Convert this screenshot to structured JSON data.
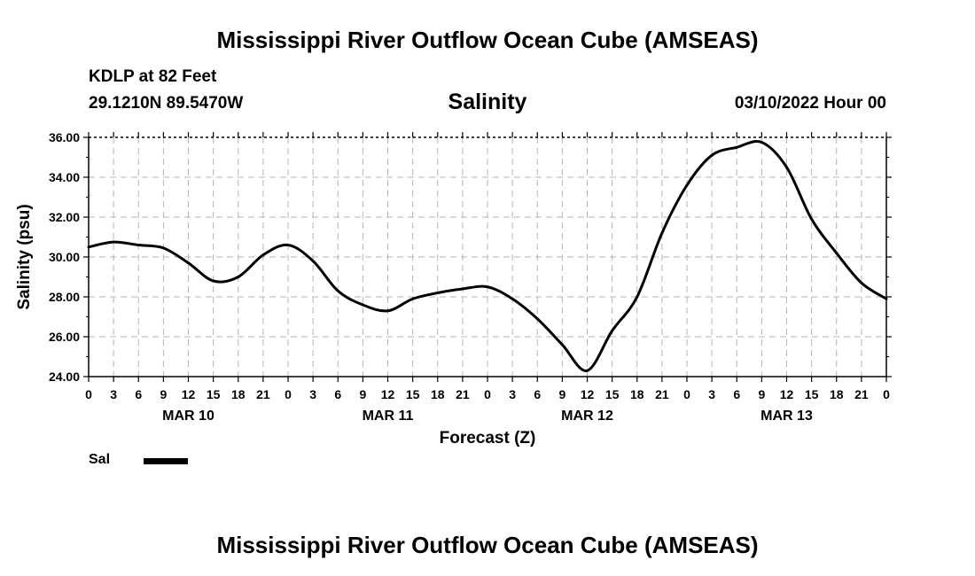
{
  "header": {
    "title": "Mississippi River Outflow Ocean Cube (AMSEAS)",
    "station": "KDLP at 82 Feet",
    "coords": "29.1210N  89.5470W",
    "plot_title": "Salinity",
    "datetime": "03/10/2022 Hour 00"
  },
  "legend": {
    "label": "Sal"
  },
  "footer": {
    "title": "Mississippi River Outflow Ocean Cube (AMSEAS)"
  },
  "chart_data": {
    "type": "line",
    "title": "Salinity",
    "xlabel": "Forecast (Z)",
    "ylabel": "Salinity (psu)",
    "ylim": [
      24,
      36
    ],
    "xlim": [
      0,
      96
    ],
    "x_unit": "hours from 03/10/2022 00Z",
    "yticks": [
      24,
      26,
      28,
      30,
      32,
      34,
      36
    ],
    "ytick_labels": [
      "24.00",
      "26.00",
      "28.00",
      "30.00",
      "32.00",
      "34.00",
      "36.00"
    ],
    "xticks": [
      0,
      3,
      6,
      9,
      12,
      15,
      18,
      21,
      24,
      27,
      30,
      33,
      36,
      39,
      42,
      45,
      48,
      51,
      54,
      57,
      60,
      63,
      66,
      69,
      72,
      75,
      78,
      81,
      84,
      87,
      90,
      93,
      96
    ],
    "xtick_labels": [
      "0",
      "3",
      "6",
      "9",
      "12",
      "15",
      "18",
      "21",
      "0",
      "3",
      "6",
      "9",
      "12",
      "15",
      "18",
      "21",
      "0",
      "3",
      "6",
      "9",
      "12",
      "15",
      "18",
      "21",
      "0",
      "3",
      "6",
      "9",
      "12",
      "15",
      "18",
      "21",
      "0"
    ],
    "day_labels": [
      {
        "hour": 12,
        "label": "MAR 10"
      },
      {
        "hour": 36,
        "label": "MAR 11"
      },
      {
        "hour": 60,
        "label": "MAR 12"
      },
      {
        "hour": 84,
        "label": "MAR 13"
      }
    ],
    "grid": true,
    "legend_position": "bottom-left",
    "series": [
      {
        "name": "Sal",
        "color": "#000000",
        "x": [
          0,
          3,
          6,
          9,
          12,
          15,
          18,
          21,
          24,
          27,
          30,
          33,
          36,
          39,
          42,
          45,
          48,
          51,
          54,
          57,
          60,
          63,
          66,
          69,
          72,
          75,
          78,
          81,
          84,
          87,
          90,
          93,
          96
        ],
        "values": [
          30.5,
          30.75,
          30.6,
          30.45,
          29.7,
          28.8,
          29.0,
          30.1,
          30.6,
          29.8,
          28.3,
          27.6,
          27.3,
          27.9,
          28.2,
          28.4,
          28.5,
          27.9,
          26.9,
          25.6,
          24.3,
          26.3,
          28.0,
          31.2,
          33.6,
          35.1,
          35.5,
          35.75,
          34.5,
          31.9,
          30.2,
          28.7,
          27.9
        ]
      }
    ]
  }
}
